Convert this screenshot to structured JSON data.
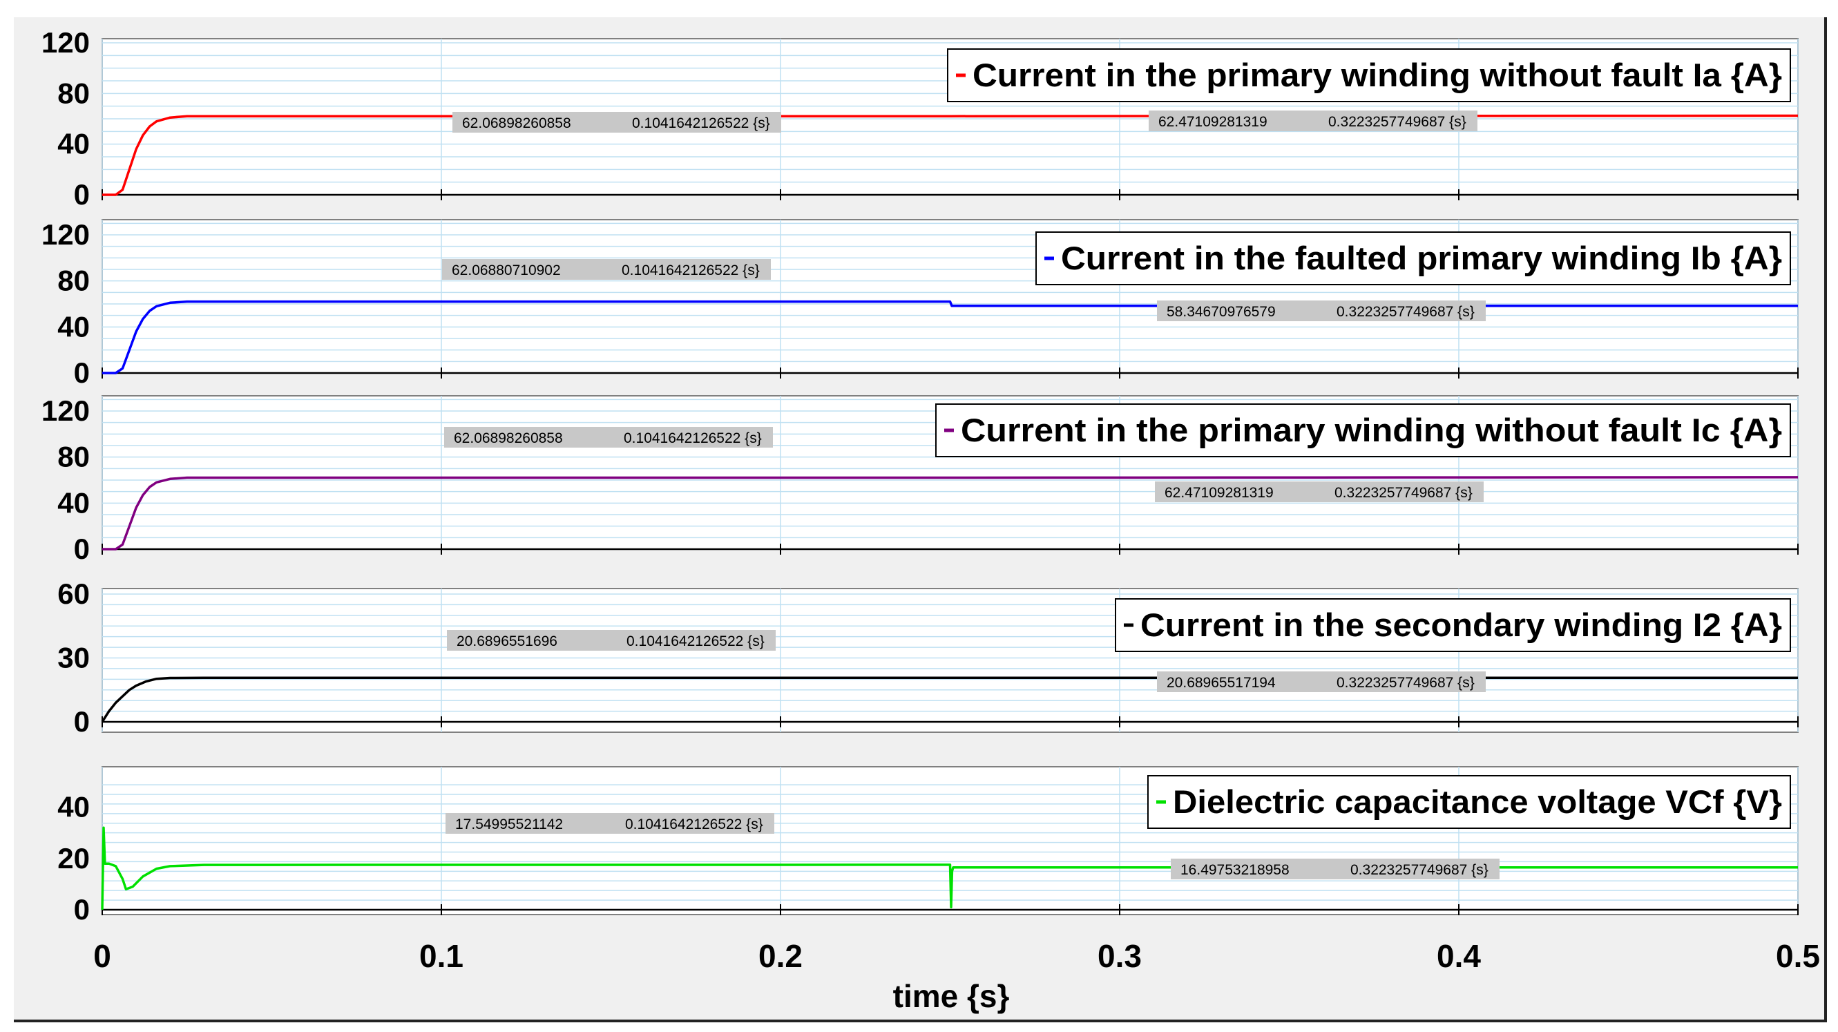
{
  "chart_data": {
    "type": "line",
    "xlabel": "time {s}",
    "xlim": [
      0,
      0.5
    ],
    "xticks": [
      "0",
      "0.1",
      "0.2",
      "0.3",
      "0.4",
      "0.5"
    ],
    "grid": true,
    "legend_position": "top-right",
    "panels": [
      {
        "legend": "Current in the primary winding without fault Ia {A}",
        "color": "#ff0000",
        "ylim": [
          0,
          120
        ],
        "yticks": [
          "120",
          "80",
          "40",
          "0"
        ],
        "x": [
          0,
          0.004,
          0.006,
          0.008,
          0.01,
          0.012,
          0.014,
          0.016,
          0.02,
          0.025,
          0.25,
          0.5
        ],
        "y": [
          0,
          0,
          4,
          20,
          36,
          47,
          54,
          58,
          61,
          62.07,
          62.07,
          62.47
        ],
        "annotations": [
          {
            "value": "62.06898260858",
            "time": "0.1041642126522 {s}"
          },
          {
            "value": "62.47109281319",
            "time": "0.3223257749687 {s}"
          }
        ]
      },
      {
        "legend": "Current in the faulted primary winding Ib {A}",
        "color": "#0000ff",
        "ylim": [
          0,
          120
        ],
        "yticks": [
          "120",
          "80",
          "40",
          "0"
        ],
        "x": [
          0,
          0.004,
          0.006,
          0.008,
          0.01,
          0.012,
          0.014,
          0.016,
          0.02,
          0.025,
          0.25,
          0.2505,
          0.5
        ],
        "y": [
          0,
          0,
          4,
          20,
          36,
          47,
          54,
          58,
          61,
          62.07,
          62.07,
          58.35,
          58.35
        ],
        "annotations": [
          {
            "value": "62.06880710902",
            "time": "0.1041642126522 {s}"
          },
          {
            "value": "58.34670976579",
            "time": "0.3223257749687 {s}"
          }
        ]
      },
      {
        "legend": "Current in the primary winding without fault  Ic {A}",
        "color": "#800080",
        "ylim": [
          0,
          120
        ],
        "yticks": [
          "120",
          "80",
          "40",
          "0"
        ],
        "x": [
          0,
          0.004,
          0.006,
          0.008,
          0.01,
          0.012,
          0.014,
          0.016,
          0.02,
          0.025,
          0.25,
          0.5
        ],
        "y": [
          0,
          0,
          4,
          20,
          36,
          47,
          54,
          58,
          61,
          62.07,
          62.07,
          62.47
        ],
        "annotations": [
          {
            "value": "62.06898260858",
            "time": "0.1041642126522 {s}"
          },
          {
            "value": "62.47109281319",
            "time": "0.3223257749687 {s}"
          }
        ]
      },
      {
        "legend": "Current in the secondary winding I2 {A}",
        "color": "#000000",
        "ylim": [
          0,
          60
        ],
        "yticks": [
          "60",
          "30",
          "0"
        ],
        "x": [
          0,
          0.002,
          0.004,
          0.006,
          0.008,
          0.01,
          0.013,
          0.016,
          0.02,
          0.03,
          0.5
        ],
        "y": [
          0,
          5,
          9,
          12,
          15,
          17,
          19,
          20.2,
          20.6,
          20.69,
          20.69
        ],
        "annotations": [
          {
            "value": "20.6896551696",
            "time": "0.1041642126522 {s}"
          },
          {
            "value": "20.68965517194",
            "time": "0.3223257749687 {s}"
          }
        ]
      },
      {
        "legend": "Dielectric capacitance voltage VCf {V}",
        "color": "#00e000",
        "ylim": [
          0,
          45
        ],
        "yticks": [
          "40",
          "20",
          "0"
        ],
        "x": [
          0,
          0.0004,
          0.0008,
          0.002,
          0.004,
          0.006,
          0.007,
          0.009,
          0.012,
          0.016,
          0.02,
          0.03,
          0.25,
          0.2503,
          0.2506,
          0.2509,
          0.26,
          0.5
        ],
        "y": [
          0,
          32,
          18,
          18,
          17,
          12,
          8,
          9,
          13,
          16,
          17,
          17.5,
          17.55,
          1,
          15,
          16.5,
          16.5,
          16.5
        ],
        "annotations": [
          {
            "value": "17.54995521142",
            "time": "0.1041642126522 {s}"
          },
          {
            "value": "16.49753218958",
            "time": "0.3223257749687 {s}"
          }
        ]
      }
    ]
  }
}
